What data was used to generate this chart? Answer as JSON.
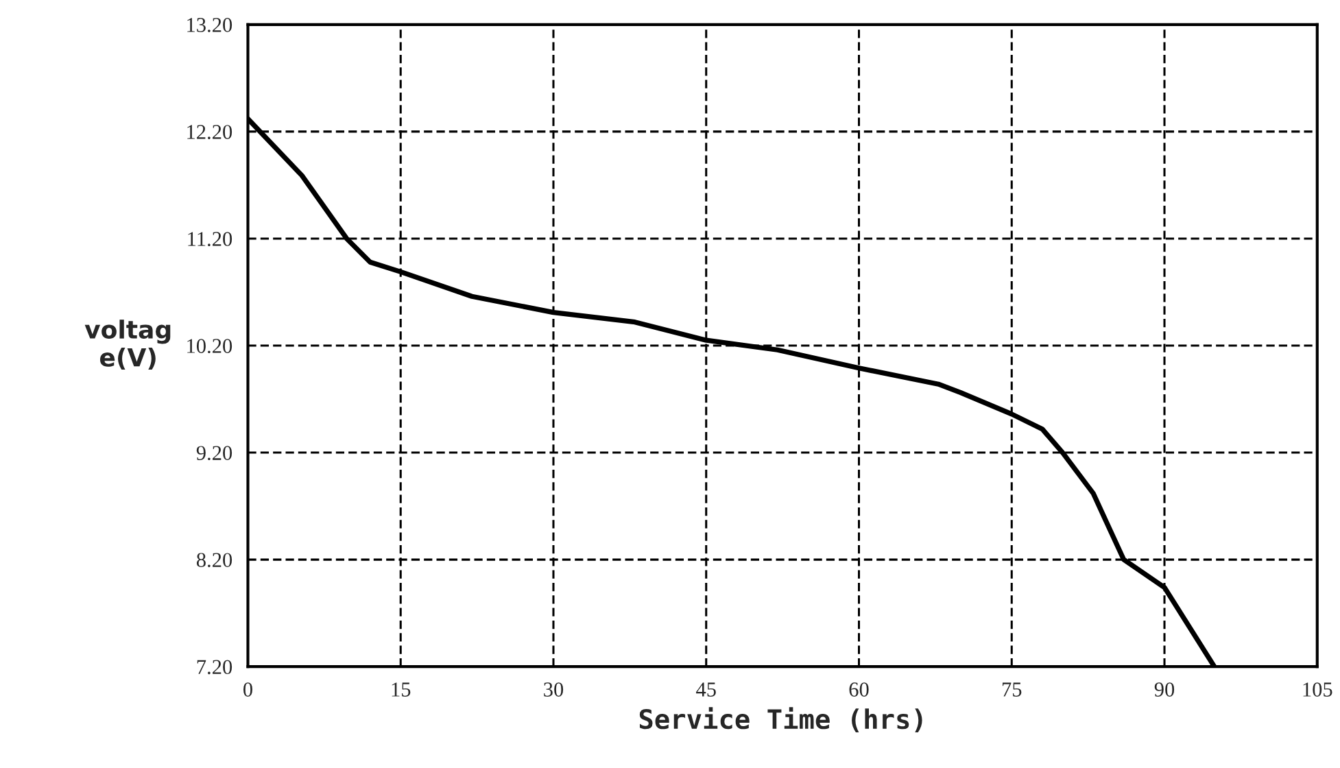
{
  "chart_data": {
    "type": "line",
    "xlabel": "Service Time (hrs)",
    "ylabel": "voltag\ne(V)",
    "xlim": [
      0,
      105
    ],
    "xticks": [
      0,
      15,
      30,
      45,
      60,
      75,
      90,
      105
    ],
    "ylim": [
      7.2,
      13.2
    ],
    "yticks": [
      {
        "value": 7.2,
        "label": "7.20"
      },
      {
        "value": 8.2,
        "label": "8.20"
      },
      {
        "value": 9.2,
        "label": "9.20"
      },
      {
        "value": 10.2,
        "label": "10.20"
      },
      {
        "value": 11.2,
        "label": "11.20"
      },
      {
        "value": 12.2,
        "label": "12.20"
      },
      {
        "value": 13.2,
        "label": "13.20"
      }
    ],
    "grid": true,
    "marker": "none",
    "line_style": "solid",
    "series": [
      {
        "color": "#000000",
        "x": [
          0,
          5.3,
          9.7,
          12,
          15,
          22,
          30,
          38,
          45,
          52,
          60,
          67.8,
          70,
          75,
          78,
          80,
          83,
          86,
          90,
          94.9
        ],
        "values": [
          12.32,
          11.79,
          11.2,
          10.98,
          10.89,
          10.66,
          10.51,
          10.42,
          10.25,
          10.16,
          9.99,
          9.84,
          9.76,
          9.56,
          9.42,
          9.2,
          8.82,
          8.2,
          7.94,
          7.2
        ]
      }
    ]
  }
}
